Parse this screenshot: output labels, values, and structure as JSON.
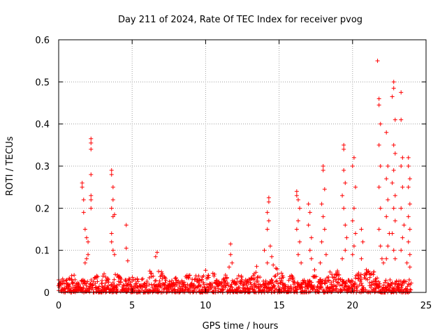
{
  "chart_data": {
    "type": "scatter",
    "title": "Day 211 of 2024, Rate Of TEC Index for receiver pvog",
    "xlabel": "GPS time / hours",
    "ylabel": "ROTI / TECUs",
    "xlim": [
      0,
      25
    ],
    "ylim": [
      0,
      0.6
    ],
    "xticks": [
      0,
      5,
      10,
      15,
      20,
      25
    ],
    "yticks": [
      0,
      0.1,
      0.2,
      0.3,
      0.4,
      0.5,
      0.6
    ],
    "grid": true,
    "marker": "+",
    "colors": {
      "series": "#ff0000",
      "grid": "#a0a0a0",
      "axis": "#000000"
    },
    "series": [
      {
        "name": "ROTI",
        "points": [
          [
            2.2,
            0.365
          ],
          [
            2.2,
            0.355
          ],
          [
            2.2,
            0.34
          ],
          [
            2.2,
            0.28
          ],
          [
            2.2,
            0.23
          ],
          [
            2.2,
            0.22
          ],
          [
            2.2,
            0.2
          ],
          [
            1.6,
            0.26
          ],
          [
            1.6,
            0.25
          ],
          [
            1.7,
            0.22
          ],
          [
            1.7,
            0.19
          ],
          [
            1.8,
            0.15
          ],
          [
            1.9,
            0.13
          ],
          [
            2.0,
            0.12
          ],
          [
            2.0,
            0.09
          ],
          [
            1.9,
            0.08
          ],
          [
            1.8,
            0.07
          ],
          [
            3.6,
            0.29
          ],
          [
            3.6,
            0.28
          ],
          [
            3.7,
            0.25
          ],
          [
            3.7,
            0.22
          ],
          [
            3.6,
            0.2
          ],
          [
            3.8,
            0.185
          ],
          [
            3.7,
            0.18
          ],
          [
            3.6,
            0.14
          ],
          [
            3.6,
            0.12
          ],
          [
            3.7,
            0.1
          ],
          [
            3.8,
            0.09
          ],
          [
            4.6,
            0.16
          ],
          [
            4.6,
            0.105
          ],
          [
            4.7,
            0.075
          ],
          [
            6.7,
            0.095
          ],
          [
            6.6,
            0.085
          ],
          [
            6.8,
            0.05
          ],
          [
            11.7,
            0.115
          ],
          [
            11.7,
            0.09
          ],
          [
            11.8,
            0.07
          ],
          [
            11.6,
            0.06
          ],
          [
            14.0,
            0.1
          ],
          [
            14.2,
            0.07
          ],
          [
            14.3,
            0.225
          ],
          [
            14.3,
            0.215
          ],
          [
            14.2,
            0.19
          ],
          [
            14.3,
            0.17
          ],
          [
            14.2,
            0.15
          ],
          [
            14.4,
            0.11
          ],
          [
            14.5,
            0.085
          ],
          [
            14.6,
            0.065
          ],
          [
            16.2,
            0.24
          ],
          [
            16.2,
            0.23
          ],
          [
            16.3,
            0.22
          ],
          [
            16.4,
            0.2
          ],
          [
            16.3,
            0.17
          ],
          [
            16.2,
            0.15
          ],
          [
            16.4,
            0.12
          ],
          [
            16.3,
            0.09
          ],
          [
            16.5,
            0.07
          ],
          [
            17.0,
            0.21
          ],
          [
            17.1,
            0.19
          ],
          [
            17.0,
            0.16
          ],
          [
            17.2,
            0.13
          ],
          [
            17.1,
            0.1
          ],
          [
            17.2,
            0.08
          ],
          [
            18.0,
            0.3
          ],
          [
            18.0,
            0.29
          ],
          [
            18.1,
            0.245
          ],
          [
            17.9,
            0.21
          ],
          [
            18.0,
            0.18
          ],
          [
            18.1,
            0.15
          ],
          [
            17.9,
            0.12
          ],
          [
            18.2,
            0.09
          ],
          [
            17.8,
            0.07
          ],
          [
            19.4,
            0.35
          ],
          [
            19.4,
            0.34
          ],
          [
            19.4,
            0.29
          ],
          [
            19.5,
            0.26
          ],
          [
            19.3,
            0.23
          ],
          [
            19.4,
            0.2
          ],
          [
            19.5,
            0.16
          ],
          [
            19.6,
            0.13
          ],
          [
            19.5,
            0.1
          ],
          [
            19.3,
            0.08
          ],
          [
            20.1,
            0.32
          ],
          [
            20.0,
            0.3
          ],
          [
            20.2,
            0.25
          ],
          [
            20.1,
            0.2
          ],
          [
            20.0,
            0.17
          ],
          [
            20.2,
            0.14
          ],
          [
            20.1,
            0.11
          ],
          [
            20.0,
            0.09
          ],
          [
            20.6,
            0.15
          ],
          [
            20.7,
            0.12
          ],
          [
            20.6,
            0.08
          ],
          [
            21.7,
            0.55
          ],
          [
            21.8,
            0.46
          ],
          [
            21.8,
            0.445
          ],
          [
            21.9,
            0.4
          ],
          [
            21.8,
            0.35
          ],
          [
            21.9,
            0.3
          ],
          [
            21.8,
            0.25
          ],
          [
            21.9,
            0.2
          ],
          [
            21.8,
            0.15
          ],
          [
            21.9,
            0.11
          ],
          [
            22.0,
            0.08
          ],
          [
            22.1,
            0.07
          ],
          [
            22.3,
            0.38
          ],
          [
            22.4,
            0.3
          ],
          [
            22.3,
            0.27
          ],
          [
            22.4,
            0.22
          ],
          [
            22.3,
            0.18
          ],
          [
            22.5,
            0.14
          ],
          [
            22.4,
            0.11
          ],
          [
            22.3,
            0.08
          ],
          [
            22.8,
            0.5
          ],
          [
            22.8,
            0.485
          ],
          [
            22.7,
            0.465
          ],
          [
            22.9,
            0.41
          ],
          [
            22.8,
            0.35
          ],
          [
            22.9,
            0.33
          ],
          [
            22.8,
            0.29
          ],
          [
            22.7,
            0.26
          ],
          [
            22.9,
            0.23
          ],
          [
            22.8,
            0.2
          ],
          [
            22.9,
            0.17
          ],
          [
            22.7,
            0.14
          ],
          [
            22.8,
            0.1
          ],
          [
            22.9,
            0.08
          ],
          [
            23.3,
            0.475
          ],
          [
            23.3,
            0.41
          ],
          [
            23.4,
            0.32
          ],
          [
            23.3,
            0.3
          ],
          [
            23.4,
            0.25
          ],
          [
            23.3,
            0.2
          ],
          [
            23.5,
            0.16
          ],
          [
            23.4,
            0.13
          ],
          [
            23.3,
            0.1
          ],
          [
            23.8,
            0.32
          ],
          [
            23.8,
            0.3
          ],
          [
            23.9,
            0.27
          ],
          [
            23.8,
            0.25
          ],
          [
            23.9,
            0.21
          ],
          [
            23.8,
            0.18
          ],
          [
            23.9,
            0.15
          ],
          [
            23.8,
            0.12
          ],
          [
            23.9,
            0.09
          ],
          [
            23.7,
            0.07
          ],
          [
            23.9,
            0.06
          ]
        ],
        "baseline": {
          "x_range": [
            0,
            24
          ],
          "typical_range": [
            0.0,
            0.03
          ],
          "bumps": [
            [
              0.5,
              0.04
            ],
            [
              1.0,
              0.045
            ],
            [
              2.6,
              0.04
            ],
            [
              3.1,
              0.05
            ],
            [
              4.0,
              0.055
            ],
            [
              5.0,
              0.04
            ],
            [
              5.5,
              0.045
            ],
            [
              6.2,
              0.06
            ],
            [
              7.0,
              0.05
            ],
            [
              7.8,
              0.05
            ],
            [
              8.8,
              0.05
            ],
            [
              9.5,
              0.05
            ],
            [
              10.0,
              0.055
            ],
            [
              10.5,
              0.05
            ],
            [
              11.3,
              0.05
            ],
            [
              12.3,
              0.045
            ],
            [
              13.0,
              0.04
            ],
            [
              13.5,
              0.07
            ],
            [
              14.8,
              0.06
            ],
            [
              15.2,
              0.05
            ],
            [
              15.8,
              0.055
            ],
            [
              17.5,
              0.06
            ],
            [
              18.5,
              0.05
            ],
            [
              19.0,
              0.055
            ],
            [
              20.4,
              0.06
            ],
            [
              21.0,
              0.06
            ],
            [
              21.4,
              0.055
            ]
          ]
        }
      }
    ]
  }
}
